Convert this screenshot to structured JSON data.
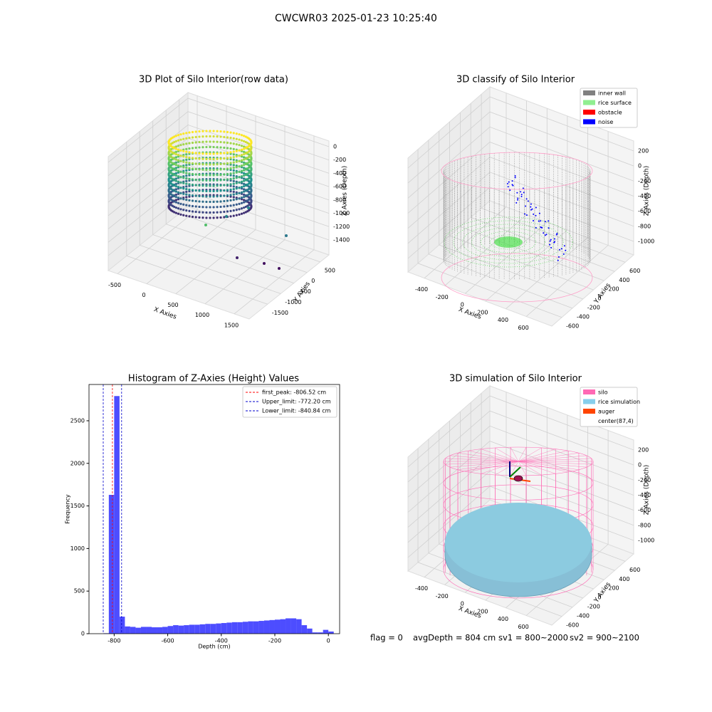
{
  "title": "CWCWR03 2025-01-23 10:25:40",
  "footer": [
    "flag = 0",
    "avgDepth = 804 cm",
    "sv1 = 800~2000",
    "sv2 = 900~2100"
  ],
  "chart_data": [
    {
      "type": "scatter3d",
      "title": "3D Plot of Silo Interior(row data)",
      "x_label": "X Axies",
      "y_label": "Y Axies",
      "z_label": "Z Axies (Depth)",
      "xlim": [
        -659,
        1756
      ],
      "xticks": [
        -500,
        0,
        500,
        1000,
        1500
      ],
      "ylim": [
        -2197,
        833
      ],
      "yticks": [
        500,
        0,
        -500,
        -1000,
        -1500
      ],
      "zlim": [
        -1624,
        85
      ],
      "zticks": [
        0,
        -200,
        -400,
        -600,
        -800,
        -1000,
        -1200,
        -1400
      ]
    },
    {
      "type": "scatter3d",
      "title": "3D classify of Silo Interior",
      "x_label": "X Axies",
      "y_label": "Y Axies",
      "z_label": "Z Axies (Depth)",
      "xlim": [
        -561,
        851
      ],
      "xticks": [
        -400,
        -200,
        0,
        200,
        400,
        600
      ],
      "ylim": [
        -789,
        761
      ],
      "yticks": [
        600,
        400,
        200,
        0,
        -200,
        -400,
        -600
      ],
      "zlim": [
        -1180,
        332
      ],
      "zticks": [
        200,
        0,
        -200,
        -400,
        -600,
        -800,
        -1000
      ],
      "series": [
        {
          "name": "inner wall",
          "color": "#808080"
        },
        {
          "name": "rice surface",
          "color": "#90ee90"
        },
        {
          "name": "obstacle",
          "color": "#ff0000"
        },
        {
          "name": "noise",
          "color": "#0000ff"
        }
      ]
    },
    {
      "type": "histogram",
      "title": "Histogram of Z-Axies (Height) Values",
      "x_label": "Depth (cm)",
      "y_label": "Frequency",
      "color": "#4d4dff",
      "bins": [
        -840,
        -820,
        -800,
        -780,
        -760,
        -740,
        -720,
        -700,
        -680,
        -660,
        -640,
        -620,
        -600,
        -580,
        -560,
        -540,
        -520,
        -500,
        -480,
        -460,
        -440,
        -420,
        -400,
        -380,
        -360,
        -340,
        -320,
        -300,
        -280,
        -260,
        -240,
        -220,
        -200,
        -180,
        -160,
        -140,
        -120,
        -100,
        -80,
        -60,
        -40,
        -20,
        0,
        20
      ],
      "counts": [
        5,
        1630,
        2790,
        200,
        85,
        80,
        70,
        80,
        80,
        75,
        75,
        80,
        90,
        100,
        95,
        100,
        105,
        105,
        110,
        115,
        115,
        120,
        125,
        130,
        135,
        135,
        140,
        145,
        145,
        150,
        155,
        160,
        165,
        170,
        180,
        180,
        170,
        100,
        60,
        15,
        15,
        45,
        25
      ],
      "xlim": [
        -894,
        42
      ],
      "xticks": [
        -800,
        -600,
        -400,
        -200,
        0
      ],
      "ylim": [
        0,
        2926
      ],
      "yticks": [
        0,
        500,
        1000,
        1500,
        2000,
        2500
      ],
      "lines": [
        {
          "name": "first_peak: -806.52 cm",
          "value": -806.52,
          "color": "#ff0000"
        },
        {
          "name": "Upper_limit: -772.20 cm",
          "value": -772.2,
          "color": "#0000cc"
        },
        {
          "name": "Lower_limit: -840.84 cm",
          "value": -840.84,
          "color": "#0000cc"
        }
      ],
      "legend": "upper right"
    },
    {
      "type": "surface3d",
      "title": "3D simulation of Silo Interior",
      "x_label": "X Axies",
      "y_label": "Y Axies",
      "z_label": "Z Axies (Depth)",
      "xlim": [
        -561,
        851
      ],
      "xticks": [
        -400,
        -200,
        0,
        200,
        400,
        600
      ],
      "ylim": [
        -789,
        761
      ],
      "yticks": [
        600,
        400,
        200,
        0,
        -200,
        -400,
        -600
      ],
      "zlim": [
        -1180,
        332
      ],
      "zticks": [
        200,
        0,
        -200,
        -400,
        -600,
        -800,
        -1000
      ],
      "series": [
        {
          "name": "silo",
          "color": "#ff69b4"
        },
        {
          "name": "rice simulation",
          "color": "#87ceeb"
        },
        {
          "name": "auger",
          "color": "#ff4500"
        },
        {
          "name": "center(87,4)",
          "color": "#ffffff"
        }
      ]
    }
  ]
}
